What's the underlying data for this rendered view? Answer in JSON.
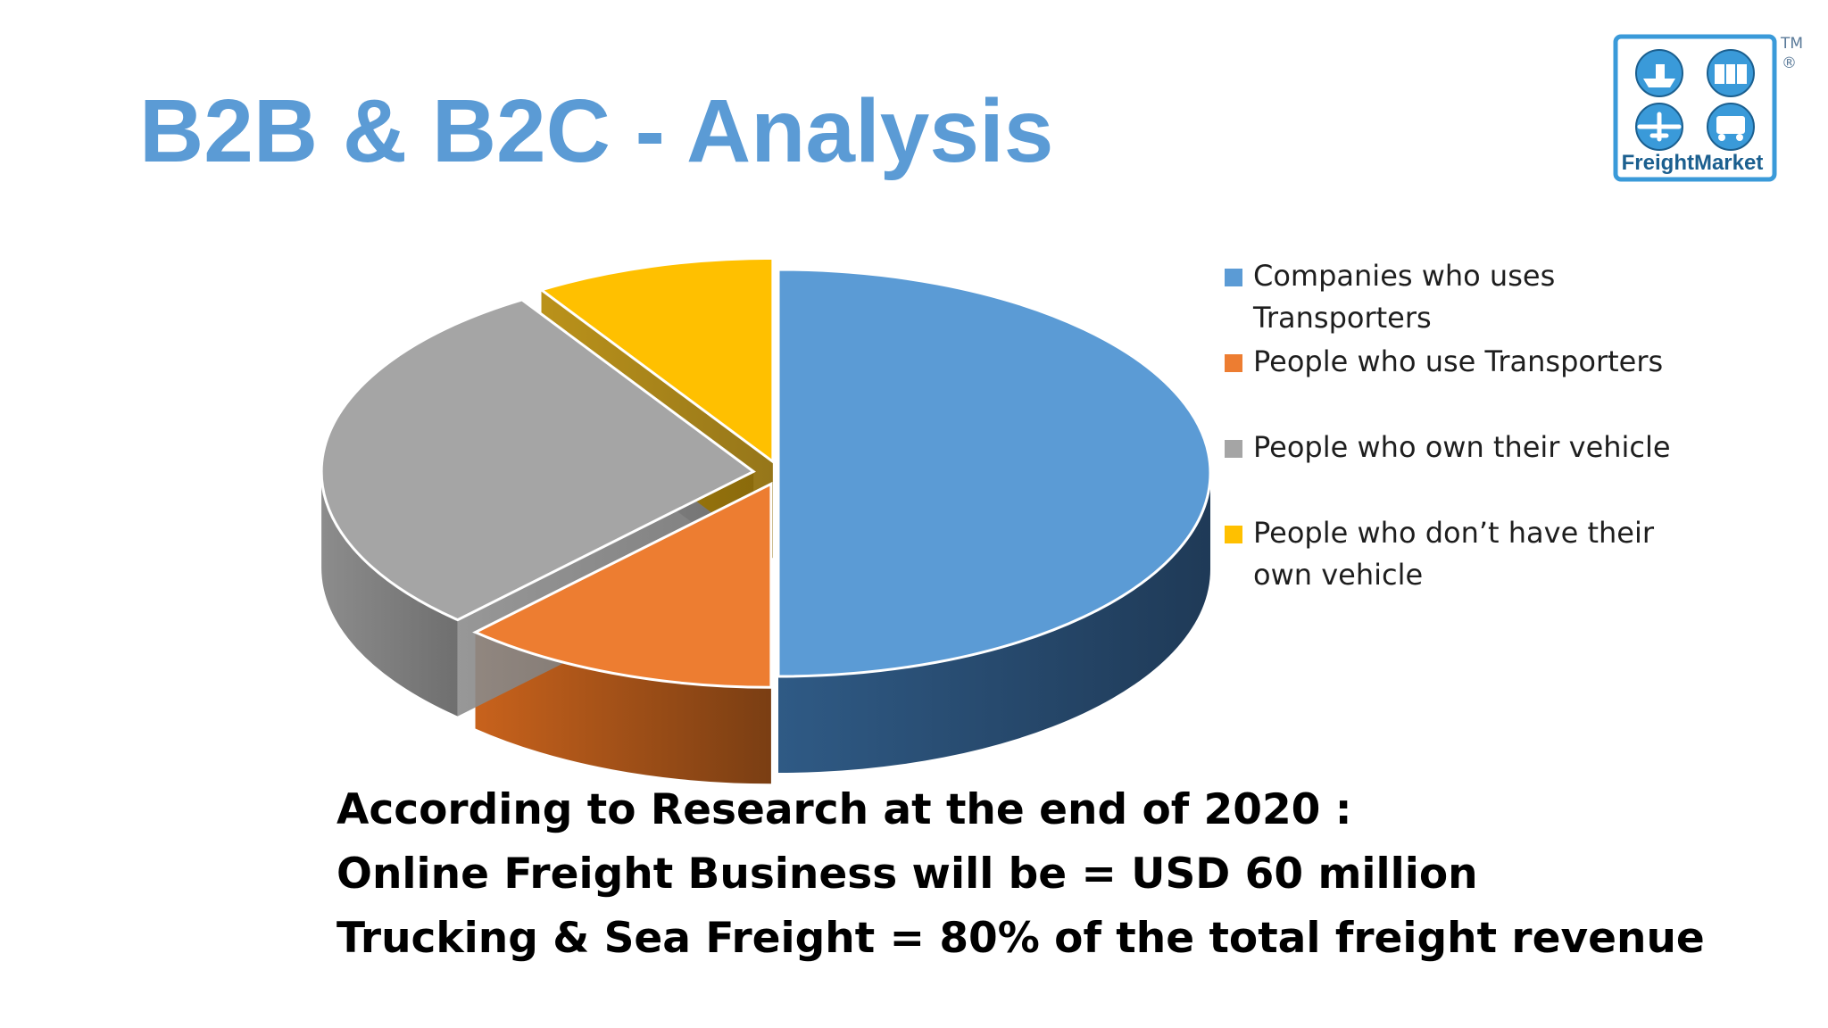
{
  "slide": {
    "title": "B2B & B2C - Analysis"
  },
  "logo": {
    "text": "FreightMarket",
    "tm_mark": "TM",
    "registered_mark": "®",
    "colors": {
      "primary": "#3a9ad9",
      "dark": "#1b5f8f"
    },
    "icons": [
      "ship-icon",
      "container-icon",
      "airplane-icon",
      "truck-icon"
    ]
  },
  "chart_data": {
    "type": "pie",
    "categories": [
      "Companies who uses Transporters",
      "People who use Transporters",
      "People who own their vehicle",
      "People who don’t have their own vehicle"
    ],
    "values": [
      50,
      12,
      29,
      9
    ],
    "colors": [
      "#5b9bd5",
      "#ed7d31",
      "#a5a5a5",
      "#ffc000"
    ],
    "title": "",
    "legend_position": "right",
    "style": "3d-exploded"
  },
  "footer": {
    "lines": [
      "According to Research at the end of 2020 :",
      "Online Freight Business will be = USD 60 million",
      "Trucking & Sea Freight = 80% of the total freight revenue"
    ]
  }
}
